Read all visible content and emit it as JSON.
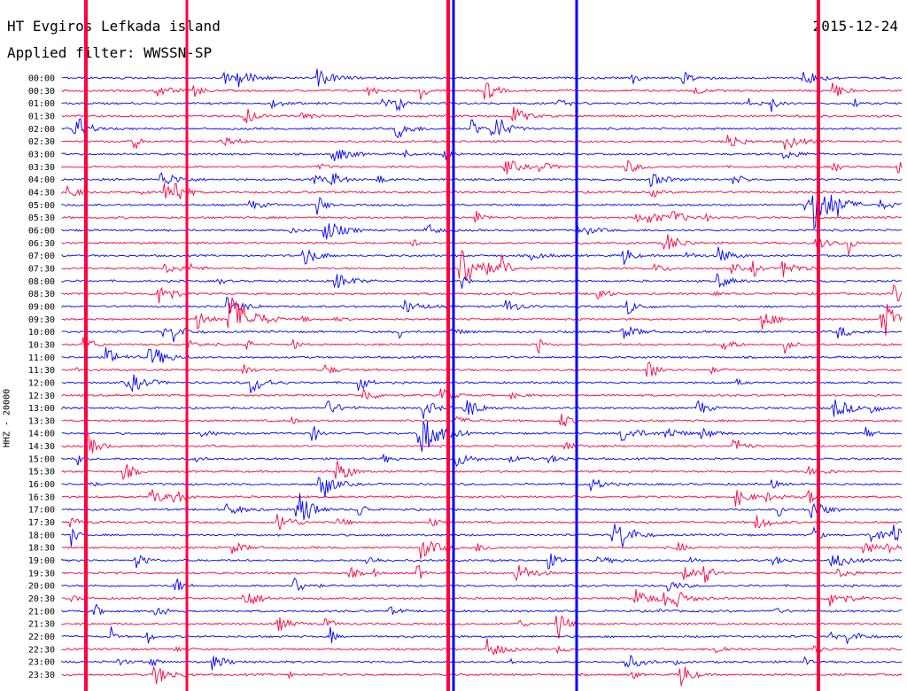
{
  "header": {
    "station": "HT Evgiros Lefkada island",
    "date": "2015-12-24",
    "filter": "Applied filter: WWSSN-SP",
    "channel": "HHZ - 20000"
  },
  "chart_data": {
    "type": "line",
    "title": "HT Evgiros Lefkada island",
    "subtitle": "Applied filter: WWSSN-SP",
    "ylabel": "HHZ - 20000",
    "xlabel": "",
    "grid": false,
    "series_colors": [
      "#0000ff",
      "#ff0040"
    ],
    "row_labels": [
      "00:00",
      "00:30",
      "01:00",
      "01:30",
      "02:00",
      "02:30",
      "03:00",
      "03:30",
      "04:00",
      "04:30",
      "05:00",
      "05:30",
      "06:00",
      "06:30",
      "07:00",
      "07:30",
      "08:00",
      "08:30",
      "09:00",
      "09:30",
      "10:00",
      "10:30",
      "11:00",
      "11:30",
      "12:00",
      "12:30",
      "13:00",
      "13:30",
      "14:00",
      "14:30",
      "15:00",
      "15:30",
      "16:00",
      "16:30",
      "17:00",
      "17:30",
      "18:00",
      "18:30",
      "19:00",
      "19:30",
      "20:00",
      "20:30",
      "21:00",
      "21:30",
      "22:00",
      "22:30",
      "23:00",
      "23:30"
    ]
  }
}
